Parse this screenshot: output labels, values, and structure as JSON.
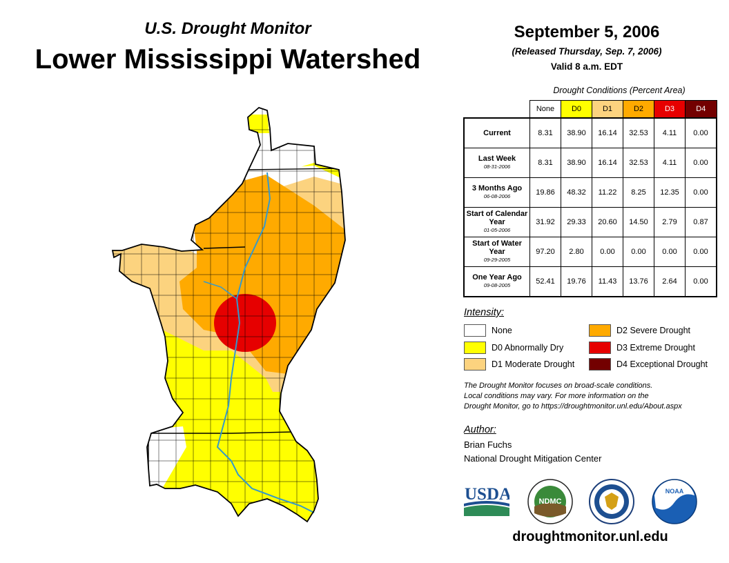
{
  "header": {
    "subtitle": "U.S. Drought Monitor",
    "title": "Lower Mississippi Watershed",
    "date": "September 5, 2006",
    "released": "(Released Thursday, Sep. 7, 2006)",
    "valid": "Valid 8 a.m. EDT"
  },
  "table": {
    "caption": "Drought Conditions (Percent Area)",
    "columns": [
      "None",
      "D0",
      "D1",
      "D2",
      "D3",
      "D4"
    ],
    "column_colors": [
      "#ffffff",
      "#ffff00",
      "#fcd37f",
      "#ffaa00",
      "#e60000",
      "#730000"
    ],
    "rows": [
      {
        "label": "Current",
        "date": "",
        "values": [
          "8.31",
          "38.90",
          "16.14",
          "32.53",
          "4.11",
          "0.00"
        ]
      },
      {
        "label": "Last Week",
        "date": "08-31-2006",
        "values": [
          "8.31",
          "38.90",
          "16.14",
          "32.53",
          "4.11",
          "0.00"
        ]
      },
      {
        "label": "3 Months Ago",
        "date": "06-08-2006",
        "values": [
          "19.86",
          "48.32",
          "11.22",
          "8.25",
          "12.35",
          "0.00"
        ]
      },
      {
        "label": "Start of Calendar Year",
        "date": "01-05-2006",
        "values": [
          "31.92",
          "29.33",
          "20.60",
          "14.50",
          "2.79",
          "0.87"
        ]
      },
      {
        "label": "Start of Water Year",
        "date": "09-29-2005",
        "values": [
          "97.20",
          "2.80",
          "0.00",
          "0.00",
          "0.00",
          "0.00"
        ]
      },
      {
        "label": "One Year Ago",
        "date": "09-08-2005",
        "values": [
          "52.41",
          "19.76",
          "11.43",
          "13.76",
          "2.64",
          "0.00"
        ]
      }
    ]
  },
  "legend": {
    "title": "Intensity:",
    "items": [
      {
        "label": "None",
        "color": "#ffffff"
      },
      {
        "label": "D0 Abnormally Dry",
        "color": "#ffff00"
      },
      {
        "label": "D1 Moderate Drought",
        "color": "#fcd37f"
      },
      {
        "label": "D2 Severe Drought",
        "color": "#ffaa00"
      },
      {
        "label": "D3 Extreme Drought",
        "color": "#e60000"
      },
      {
        "label": "D4 Exceptional Drought",
        "color": "#730000"
      }
    ]
  },
  "disclaimer": {
    "line1": "The Drought Monitor focuses on broad-scale conditions.",
    "line2": "Local conditions may vary. For more information on the",
    "line3": "Drought Monitor, go to https://droughtmonitor.unl.edu/About.aspx"
  },
  "author": {
    "title": "Author:",
    "name": "Brian Fuchs",
    "org": "National Drought Mitigation Center"
  },
  "logos": {
    "usda": "USDA",
    "ndmc": "NDMC",
    "noaa": "NOAA"
  },
  "url": "droughtmonitor.unl.edu",
  "colors": {
    "river": "#3399cc",
    "border": "#000000"
  }
}
